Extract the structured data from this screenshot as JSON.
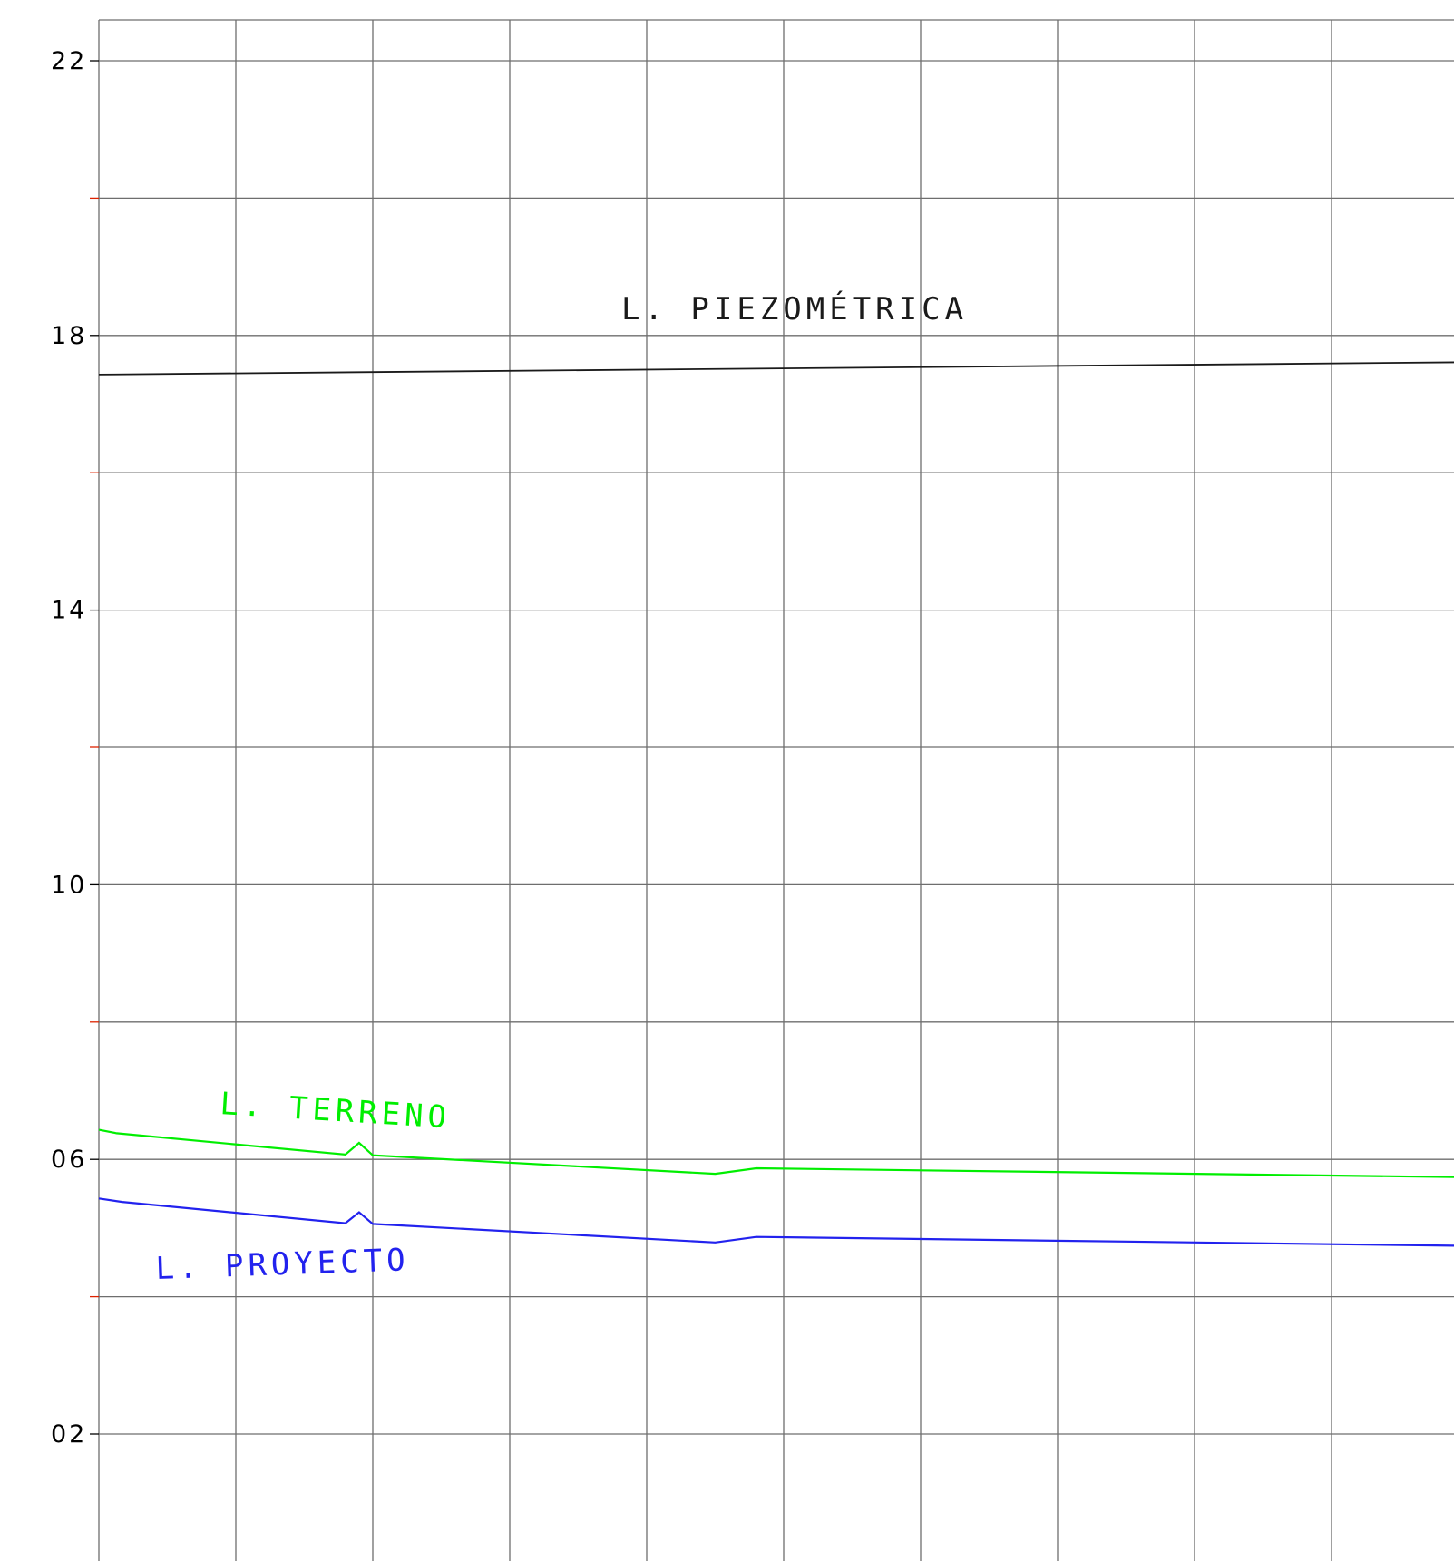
{
  "chart_data": {
    "type": "line",
    "title": "",
    "xlabel": "",
    "ylabel": "",
    "ylim": [
      -1,
      23
    ],
    "xlim": [
      0,
      10
    ],
    "grid": true,
    "y_ticks": [
      {
        "value": 22,
        "label": "22"
      },
      {
        "value": 18,
        "label": "18"
      },
      {
        "value": 14,
        "label": "14"
      },
      {
        "value": 10,
        "label": "10"
      },
      {
        "value": 6,
        "label": "06"
      },
      {
        "value": 2,
        "label": "02"
      }
    ],
    "y_minor_ticks": [
      20,
      16,
      12,
      8,
      4
    ],
    "x_gridlines": [
      0,
      1,
      2,
      3,
      4,
      5,
      6,
      7,
      8,
      9,
      10
    ],
    "series": [
      {
        "name": "L. PIEZOMÉTRICA",
        "color": "#1a1a1a",
        "x": [
          0,
          10
        ],
        "y": [
          17.43,
          17.61
        ]
      },
      {
        "name": "L. TERRENO",
        "color": "#00ee00",
        "x": [
          0,
          0.13,
          1.8,
          1.9,
          2.0,
          4.5,
          4.8,
          10
        ],
        "y": [
          6.43,
          6.38,
          6.07,
          6.24,
          6.06,
          5.79,
          5.87,
          5.74
        ]
      },
      {
        "name": "L. PROYECTO",
        "color": "#2222ee",
        "x": [
          0,
          0.17,
          1.8,
          1.9,
          2.0,
          4.5,
          4.8,
          10
        ],
        "y": [
          5.43,
          5.38,
          5.07,
          5.23,
          5.06,
          4.79,
          4.87,
          4.74
        ]
      }
    ]
  },
  "colors": {
    "grid": "#6e6e6e",
    "minor_tick": "#dd2200",
    "axis_text": "#000000"
  }
}
